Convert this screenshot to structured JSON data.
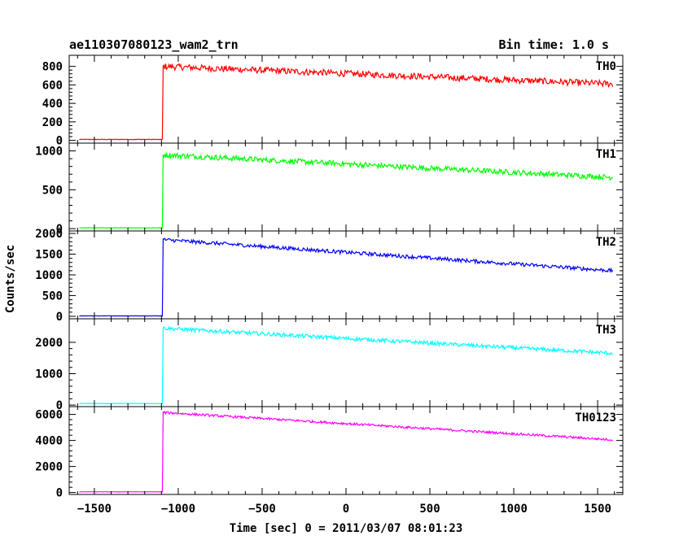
{
  "header": {
    "title": "ae110307080123_wam2_trn",
    "bin_time": "Bin time: 1.0 s"
  },
  "chart_data": {
    "type": "line",
    "xlabel": "Time [sec] 0 = 2011/03/07 08:01:23",
    "ylabel": "Counts/sec",
    "xlim": [
      -1650,
      1650
    ],
    "xticks": [
      -1500,
      -1000,
      -500,
      0,
      500,
      1000,
      1500
    ],
    "xticklabels": [
      "−1500",
      "−1000",
      "−500",
      "0",
      "500",
      "1000",
      "1500"
    ],
    "x_start": -1590,
    "x_step": 5,
    "x_onset": -1090,
    "x_end": 1590,
    "panels": [
      {
        "name": "TH0",
        "color": "#ff0000",
        "ylim": [
          -30,
          920
        ],
        "yticks": [
          0,
          200,
          400,
          600,
          800
        ],
        "pre_level": 10,
        "start_level": 800,
        "end_level": 610,
        "noise_amplitude": 35
      },
      {
        "name": "TH1",
        "color": "#00ff00",
        "ylim": [
          -30,
          1100
        ],
        "yticks": [
          0,
          500,
          1000
        ],
        "pre_level": 10,
        "start_level": 950,
        "end_level": 660,
        "noise_amplitude": 35
      },
      {
        "name": "TH2",
        "color": "#0000ff",
        "ylim": [
          -60,
          2060
        ],
        "yticks": [
          0,
          500,
          1000,
          1500,
          2000
        ],
        "pre_level": 10,
        "start_level": 1850,
        "end_level": 1100,
        "noise_amplitude": 45
      },
      {
        "name": "TH3",
        "color": "#00ffff",
        "ylim": [
          -50,
          2750
        ],
        "yticks": [
          0,
          1000,
          2000
        ],
        "pre_level": 50,
        "start_level": 2450,
        "end_level": 1650,
        "noise_amplitude": 60
      },
      {
        "name": "TH0123",
        "color": "#ff00ff",
        "ylim": [
          -150,
          6600
        ],
        "yticks": [
          0,
          2000,
          4000,
          6000
        ],
        "pre_level": 50,
        "start_level": 6150,
        "end_level": 4050,
        "noise_amplitude": 90
      }
    ]
  }
}
